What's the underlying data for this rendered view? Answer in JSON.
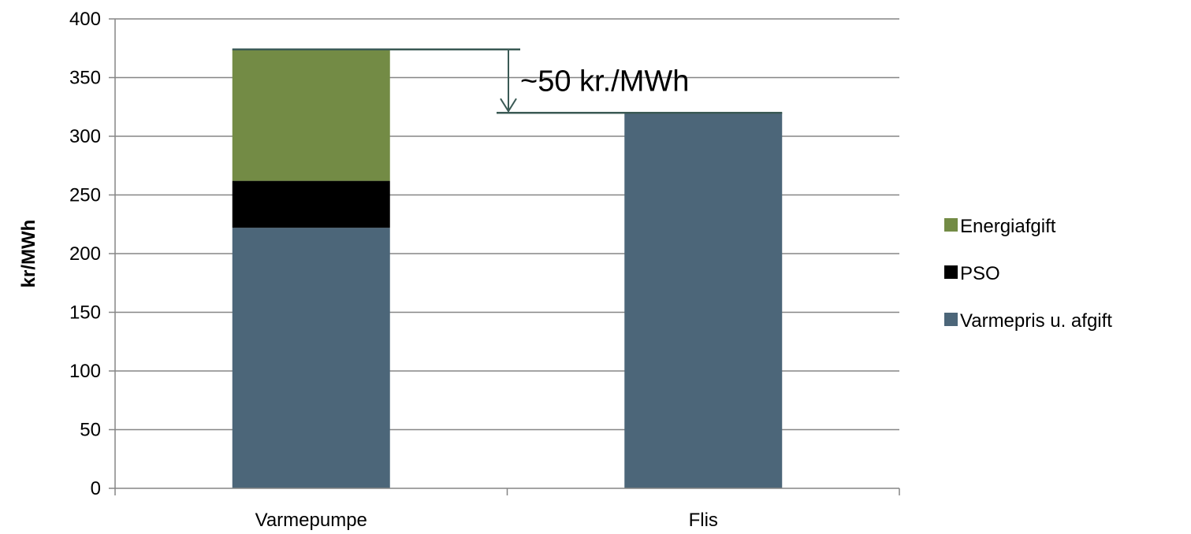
{
  "chart_data": {
    "type": "bar",
    "stacked": true,
    "categories": [
      "Varmepumpe",
      "Flis"
    ],
    "series": [
      {
        "name": "Varmepris u. afgift",
        "values": [
          222,
          320
        ],
        "color": "#4c6679"
      },
      {
        "name": "PSO",
        "values": [
          40,
          0
        ],
        "color": "#000000"
      },
      {
        "name": "Energiafgift",
        "values": [
          112,
          0
        ],
        "color": "#738b45"
      }
    ],
    "legend_order": [
      "Energiafgift",
      "PSO",
      "Varmepris u. afgift"
    ],
    "ylabel": "kr/MWh",
    "xlabel": "",
    "title": "",
    "ylim": [
      0,
      400
    ],
    "yticks": [
      "0",
      "50",
      "100",
      "150",
      "200",
      "250",
      "300",
      "350",
      "400"
    ],
    "ytick_values": [
      0,
      50,
      100,
      150,
      200,
      250,
      300,
      350,
      400
    ],
    "grid": true,
    "legend_position": "right",
    "annotation": {
      "text": "~50 kr./MWh",
      "from_value": 374,
      "to_value": 320,
      "color": "#3b5a55"
    }
  }
}
